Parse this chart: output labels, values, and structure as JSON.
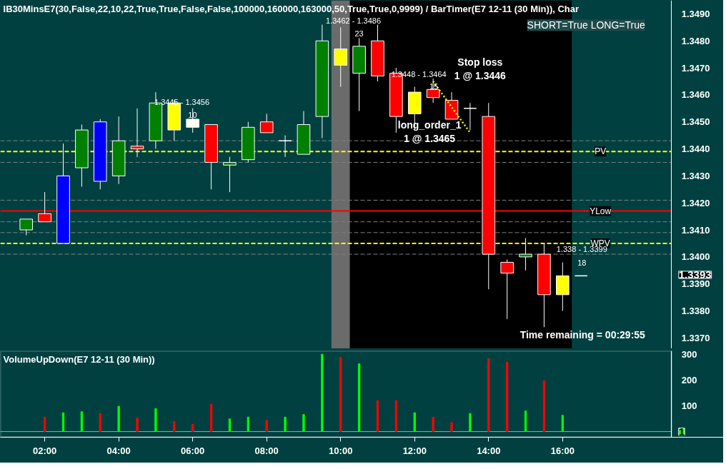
{
  "chart_data": [
    {
      "type": "candlestick",
      "title": "IB30MinsE7(30,False,22,10,22,True,True,False,False,100000,160000,163000,50,True,True,0,9999)  /  BarTimer(E7  12-11  (30  Min)),  Char",
      "x": [
        1.5,
        2,
        2.5,
        3,
        3.5,
        4,
        4.5,
        5,
        5.5,
        6,
        6.5,
        7,
        7.5,
        8,
        8.5,
        9,
        9.5,
        10,
        10.5,
        11,
        11.5,
        12,
        12.5,
        13,
        13.5,
        14,
        14.5,
        15,
        15.5,
        16,
        16.5
      ],
      "ohlc": [
        [
          1.341,
          1.3414,
          1.3408,
          1.3414
        ],
        [
          1.3416,
          1.3424,
          1.3413,
          1.3413
        ],
        [
          1.3405,
          1.3442,
          1.3405,
          1.343
        ],
        [
          1.3433,
          1.3449,
          1.3426,
          1.3447
        ],
        [
          1.345,
          1.3451,
          1.3425,
          1.3428
        ],
        [
          1.343,
          1.3452,
          1.3427,
          1.3443
        ],
        [
          1.3441,
          1.3455,
          1.3437,
          1.344
        ],
        [
          1.3443,
          1.3461,
          1.344,
          1.3457
        ],
        [
          1.3457,
          1.3458,
          1.3443,
          1.3447
        ],
        [
          1.3451,
          1.3455,
          1.3446,
          1.3448
        ],
        [
          1.3449,
          1.3449,
          1.3425,
          1.3435
        ],
        [
          1.3434,
          1.3437,
          1.3424,
          1.3435
        ],
        [
          1.3436,
          1.345,
          1.3435,
          1.3448
        ],
        [
          1.345,
          1.3453,
          1.3446,
          1.3446
        ],
        [
          1.3443,
          1.3445,
          1.3437,
          1.3443
        ],
        [
          1.3438,
          1.3454,
          1.3438,
          1.3449
        ],
        [
          1.3452,
          1.3486,
          1.3444,
          1.348
        ],
        [
          1.3477,
          1.3485,
          1.3463,
          1.3471
        ],
        [
          1.3468,
          1.3481,
          1.3454,
          1.3478
        ],
        [
          1.348,
          1.3486,
          1.3465,
          1.3467
        ],
        [
          1.3468,
          1.347,
          1.3446,
          1.3452
        ],
        [
          1.3461,
          1.3463,
          1.3447,
          1.3453
        ],
        [
          1.3462,
          1.3466,
          1.3457,
          1.3459
        ],
        [
          1.3458,
          1.3461,
          1.3451,
          1.3451
        ],
        [
          1.3455,
          1.3457,
          1.3447,
          1.3455
        ],
        [
          1.3452,
          1.3457,
          1.3388,
          1.3401
        ],
        [
          1.3398,
          1.3399,
          1.3377,
          1.3394
        ],
        [
          1.34,
          1.3407,
          1.3395,
          1.3401
        ],
        [
          1.3401,
          1.3405,
          1.3374,
          1.3386
        ],
        [
          1.3386,
          1.3398,
          1.338,
          1.3393
        ],
        [
          1.3393,
          1.3393,
          1.3393,
          1.3393
        ]
      ],
      "colors": [
        "#008000",
        "#ff0000",
        "#0000ff",
        "#008000",
        "#0000ff",
        "#008000",
        "#ff0000",
        "#008000",
        "#ffff00",
        "#fffff0",
        "#ff0000",
        "#008000",
        "#008000",
        "#ff0000",
        "#ffffff",
        "#008000",
        "#008000",
        "#ffff00",
        "#008000",
        "#ff0000",
        "#ff0000",
        "#ffff00",
        "#ff0000",
        "#ff0000",
        "#ffffff",
        "#ff0000",
        "#ff0000",
        "#008000",
        "#ff0000",
        "#ffff00",
        "#ffffff"
      ],
      "series": [
        {
          "type": "line",
          "x": [
            12.5,
            13.5
          ],
          "values": [
            1.3465,
            1.3446
          ],
          "color": "#ffff00",
          "line_style": "dotted"
        }
      ],
      "xlim": [
        0.8,
        20.35
      ],
      "ylim": [
        1.3366,
        1.3495
      ],
      "yticks": [
        {
          "value": 1.337,
          "label": "1.3370"
        },
        {
          "value": 1.338,
          "label": "1.3380"
        },
        {
          "value": 1.339,
          "label": "1.3390"
        },
        {
          "value": 1.34,
          "label": "1.3400"
        },
        {
          "value": 1.341,
          "label": "1.3410"
        },
        {
          "value": 1.342,
          "label": "1.3420"
        },
        {
          "value": 1.343,
          "label": "1.3430"
        },
        {
          "value": 1.344,
          "label": "1.3440"
        },
        {
          "value": 1.345,
          "label": "1.3450"
        },
        {
          "value": 1.346,
          "label": "1.3460"
        },
        {
          "value": 1.347,
          "label": "1.3470"
        },
        {
          "value": 1.348,
          "label": "1.3480"
        },
        {
          "value": 1.349,
          "label": "1.3490"
        }
      ],
      "tick_labels": "y",
      "bands": [
        {
          "axis": "x",
          "from": 9.75,
          "to": 10.25,
          "color": "#6b6b6b"
        },
        {
          "axis": "x",
          "from": 10.25,
          "to": 16.25,
          "color": "#000000"
        }
      ],
      "ref_lines": [
        {
          "axis": "y",
          "value": 1.3439,
          "label": "PV",
          "color": "#ffff00",
          "line_style": "dashed"
        },
        {
          "axis": "y",
          "value": 1.3417,
          "label": "YLow",
          "color": "#ff0000",
          "line_style": "solid"
        },
        {
          "axis": "y",
          "value": 1.3405,
          "label": "WPV",
          "color": "#ffff00",
          "line_style": "dashed"
        },
        {
          "axis": "y",
          "value": 1.3443,
          "label": null,
          "color": "#808080",
          "line_style": "dashed"
        },
        {
          "axis": "y",
          "value": 1.3435,
          "label": null,
          "color": "#808080",
          "line_style": "dashed"
        },
        {
          "axis": "y",
          "value": 1.3421,
          "label": null,
          "color": "#808080",
          "line_style": "dashed"
        },
        {
          "axis": "y",
          "value": 1.3413,
          "label": null,
          "color": "#808080",
          "line_style": "dashed"
        },
        {
          "axis": "y",
          "value": 1.3409,
          "label": null,
          "color": "#808080",
          "line_style": "dashed"
        },
        {
          "axis": "y",
          "value": 1.3401,
          "label": null,
          "color": "#808080",
          "line_style": "dashed"
        }
      ],
      "annotations": [
        "1.3462 - 1.3486",
        "23",
        "1.3445 - 1.3456",
        "10",
        "1.3448 - 1.3464",
        "15",
        "Stop loss\n1 @ 1.3446",
        "long_order_1\n1 @ 1.3465",
        "1.338 - 1.3399",
        "18",
        "1.3393",
        "SHORT=True LONG=True",
        "Time remaining = 00:29:55"
      ]
    },
    {
      "type": "bar",
      "title": "VolumeUpDown(E7 12-11 (30 Min))",
      "x": [
        2,
        2.5,
        3,
        3.5,
        4,
        4.5,
        5,
        5.5,
        6,
        6.5,
        7,
        7.5,
        8,
        8.5,
        9,
        9.5,
        10,
        10.5,
        11,
        11.5,
        12,
        12.5,
        13,
        13.5,
        14,
        14.5,
        15,
        15.5,
        16
      ],
      "values": [
        56,
        73,
        77,
        70,
        98,
        52,
        89,
        38,
        28,
        106,
        49,
        56,
        44,
        56,
        66,
        300,
        288,
        263,
        120,
        120,
        73,
        56,
        35,
        70,
        283,
        269,
        80,
        197,
        63
      ],
      "colors": [
        "#ff0000",
        "#00ff00",
        "#00ff00",
        "#ff0000",
        "#00ff00",
        "#ff0000",
        "#00ff00",
        "#ff0000",
        "#ff0000",
        "#ff0000",
        "#00ff00",
        "#00ff00",
        "#ff0000",
        "#00ff00",
        "#00ff00",
        "#00ff00",
        "#ff0000",
        "#00ff00",
        "#ff0000",
        "#ff0000",
        "#00ff00",
        "#ff0000",
        "#ff0000",
        "#00ff00",
        "#ff0000",
        "#ff0000",
        "#00ff00",
        "#ff0000",
        "#00ff00"
      ],
      "xlim": [
        0.8,
        20.35
      ],
      "ylim": [
        -22,
        313
      ],
      "ref_lines": [
        {
          "axis": "y",
          "value": 0,
          "label": null,
          "color": "#a0a0a0",
          "line_style": "solid"
        }
      ],
      "xticks": [
        {
          "value": 2,
          "label": "02:00"
        },
        {
          "value": 4,
          "label": "04:00"
        },
        {
          "value": 6,
          "label": "06:00"
        },
        {
          "value": 8,
          "label": "08:00"
        },
        {
          "value": 10,
          "label": "10:00"
        },
        {
          "value": 12,
          "label": "12:00"
        },
        {
          "value": 14,
          "label": "14:00"
        },
        {
          "value": 16,
          "label": "16:00"
        }
      ],
      "yticks": [
        100,
        200,
        300
      ],
      "annotations": [
        "1"
      ]
    }
  ]
}
